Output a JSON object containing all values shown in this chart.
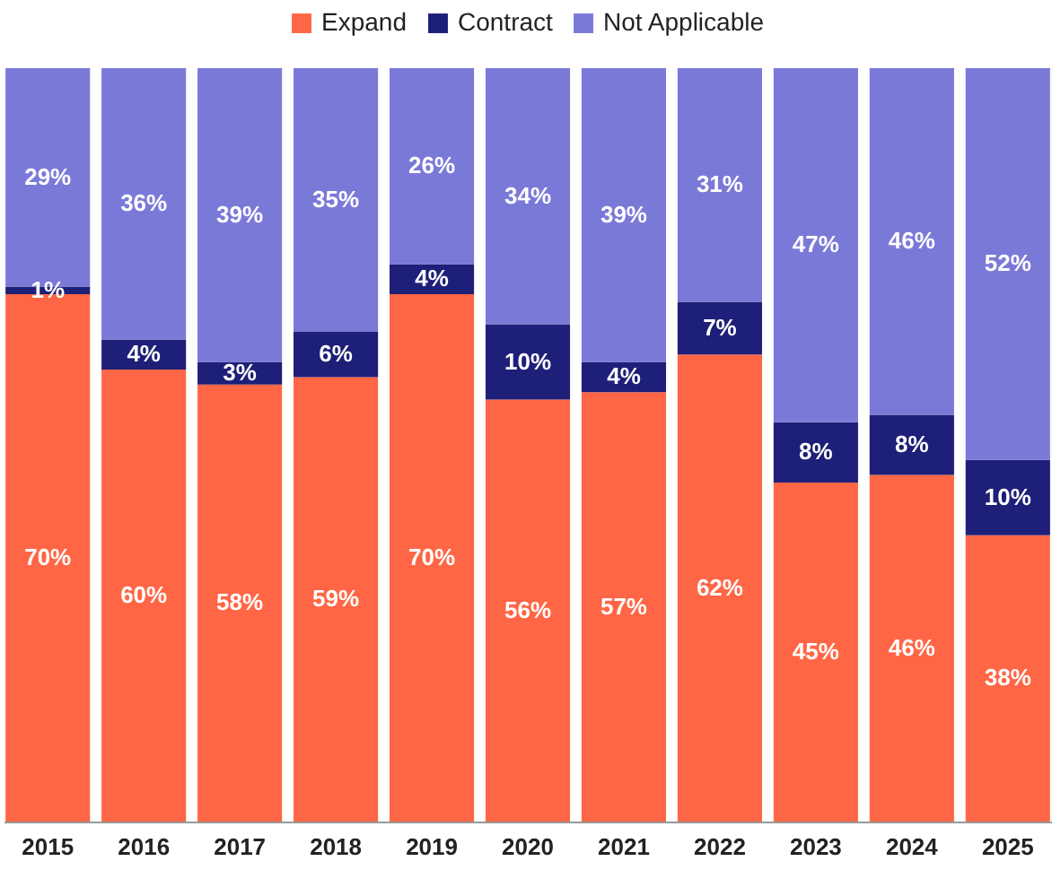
{
  "chart_data": {
    "type": "bar",
    "stacked": true,
    "legend": "top",
    "tick_labels": "x",
    "categories": [
      "2015",
      "2016",
      "2017",
      "2018",
      "2019",
      "2020",
      "2021",
      "2022",
      "2023",
      "2024",
      "2025"
    ],
    "series": [
      {
        "name": "Expand",
        "color": "#ff6645",
        "values": [
          70,
          60,
          58,
          59,
          70,
          56,
          57,
          62,
          45,
          46,
          38
        ],
        "value_labels": [
          "70%",
          "60%",
          "58%",
          "59%",
          "70%",
          "56%",
          "57%",
          "62%",
          "45%",
          "46%",
          "38%"
        ]
      },
      {
        "name": "Contract",
        "color": "#1e1f78",
        "values": [
          1,
          4,
          3,
          6,
          4,
          10,
          4,
          7,
          8,
          8,
          10
        ],
        "value_labels": [
          "1%",
          "4%",
          "3%",
          "6%",
          "4%",
          "10%",
          "4%",
          "7%",
          "8%",
          "8%",
          "10%"
        ]
      },
      {
        "name": "Not Applicable",
        "color": "#7b79d8",
        "values": [
          29,
          36,
          39,
          35,
          26,
          34,
          39,
          31,
          47,
          46,
          52
        ],
        "value_labels": [
          "29%",
          "36%",
          "39%",
          "35%",
          "26%",
          "34%",
          "39%",
          "31%",
          "47%",
          "46%",
          "52%"
        ]
      }
    ]
  }
}
